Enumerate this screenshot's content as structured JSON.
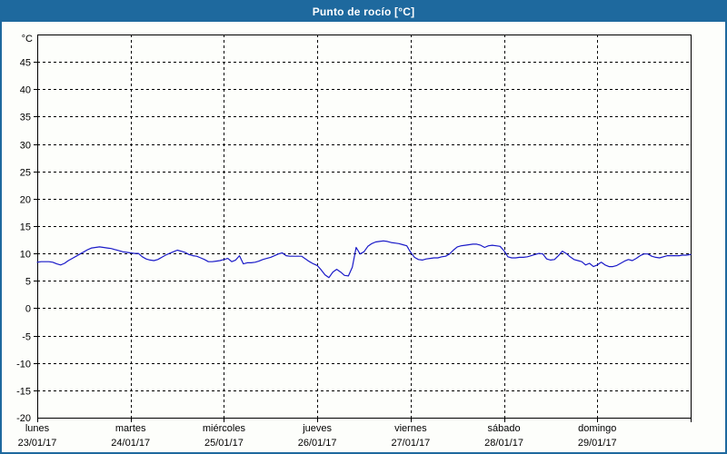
{
  "window": {
    "title": "Punto de rocío [°C]"
  },
  "colors": {
    "frame": "#1e699e",
    "titlebar_bg": "#1e699e",
    "titlebar_text": "#ffffff",
    "panel_bg": "#fdfefb",
    "grid": "#000000",
    "axis_text": "#000000",
    "line": "#1a1ac8"
  },
  "chart_data": {
    "type": "line",
    "title": "Punto de rocío [°C]",
    "y_unit_label": "°C",
    "ylim": [
      -20,
      50
    ],
    "ytick_step": 5,
    "ytick_labels": [
      "45",
      "40",
      "35",
      "30",
      "25",
      "20",
      "15",
      "10",
      "5",
      "0",
      "-5",
      "-10",
      "-15"
    ],
    "y_bottom_label": "-20",
    "grid": "dashed",
    "legend": "none",
    "x_total_hours": 168,
    "x_days": [
      {
        "name": "lunes",
        "date": "23/01/17"
      },
      {
        "name": "martes",
        "date": "24/01/17"
      },
      {
        "name": "miércoles",
        "date": "25/01/17"
      },
      {
        "name": "jueves",
        "date": "26/01/17"
      },
      {
        "name": "viernes",
        "date": "27/01/17"
      },
      {
        "name": "sábado",
        "date": "28/01/17"
      },
      {
        "name": "domingo",
        "date": "29/01/17"
      }
    ],
    "series": [
      {
        "name": "Punto de rocío",
        "color": "#1a1ac8",
        "sampling": "hourly",
        "values": [
          8.4,
          8.5,
          8.5,
          8.5,
          8.4,
          8.1,
          7.9,
          8.2,
          8.7,
          9.1,
          9.5,
          9.9,
          10.3,
          10.7,
          11.0,
          11.1,
          11.2,
          11.1,
          11.0,
          10.9,
          10.7,
          10.5,
          10.3,
          10.2,
          10.1,
          10.0,
          10.0,
          9.4,
          9.0,
          8.8,
          8.7,
          8.9,
          9.3,
          9.7,
          10.0,
          10.3,
          10.6,
          10.4,
          10.2,
          9.8,
          9.6,
          9.5,
          9.2,
          8.9,
          8.5,
          8.5,
          8.6,
          8.7,
          8.9,
          9.1,
          8.5,
          8.8,
          9.6,
          8.1,
          8.3,
          8.3,
          8.4,
          8.6,
          8.9,
          9.1,
          9.3,
          9.6,
          9.9,
          10.1,
          9.6,
          9.5,
          9.5,
          9.5,
          9.5,
          9.0,
          8.5,
          8.1,
          7.8,
          7.0,
          6.1,
          5.6,
          6.6,
          7.1,
          6.6,
          6.0,
          5.9,
          7.5,
          11.1,
          9.9,
          10.3,
          11.3,
          11.8,
          12.1,
          12.2,
          12.3,
          12.2,
          12.0,
          11.9,
          11.8,
          11.6,
          11.4,
          10.2,
          9.3,
          8.9,
          8.8,
          9.0,
          9.1,
          9.2,
          9.2,
          9.4,
          9.5,
          9.9,
          10.6,
          11.2,
          11.4,
          11.5,
          11.6,
          11.7,
          11.7,
          11.5,
          11.1,
          11.4,
          11.5,
          11.4,
          11.3,
          10.5,
          9.4,
          9.2,
          9.2,
          9.3,
          9.3,
          9.4,
          9.6,
          9.8,
          10.0,
          9.9,
          9.0,
          8.8,
          8.9,
          9.6,
          10.4,
          10.0,
          9.4,
          8.9,
          8.7,
          8.5,
          7.9,
          8.2,
          7.6,
          7.9,
          8.4,
          7.9,
          7.6,
          7.6,
          7.8,
          8.2,
          8.6,
          8.9,
          8.7,
          9.1,
          9.6,
          9.9,
          9.9,
          9.5,
          9.3,
          9.2,
          9.4,
          9.6,
          9.6,
          9.6,
          9.6,
          9.7,
          9.7,
          9.8
        ]
      }
    ]
  }
}
